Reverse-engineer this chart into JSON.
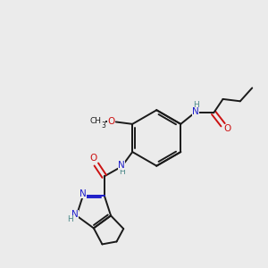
{
  "background_color": "#ebebeb",
  "bond_color": "#1a1a1a",
  "N_color": "#2020cc",
  "O_color": "#cc1111",
  "H_color": "#4a8888",
  "figsize": [
    3.0,
    3.0
  ],
  "dpi": 100,
  "xlim": [
    0,
    10
  ],
  "ylim": [
    0,
    10
  ]
}
